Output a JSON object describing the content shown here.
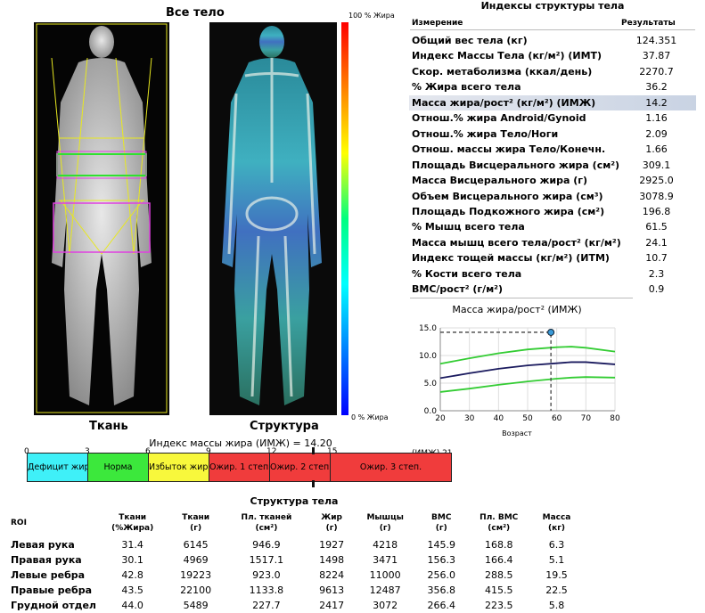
{
  "images": {
    "title": "Все тело",
    "left_label": "Ткань",
    "right_label": "Структура",
    "scale_top": "100 % Жира",
    "scale_bottom": "0 % Жира"
  },
  "indices": {
    "title": "Индексы структуры тела",
    "col_measure": "Измерение",
    "col_result": "Результаты",
    "rows": [
      {
        "label": "Общий вес тела (кг)",
        "value": "124.351"
      },
      {
        "label": "Индекс Массы Тела (кг/м²) (ИМТ)",
        "value": "37.87"
      },
      {
        "label": "Скор. метаболизма (ккал/день)",
        "value": "2270.7"
      },
      {
        "label": "% Жира всего тела",
        "value": "36.2"
      },
      {
        "label": "Масса жира/рост² (кг/м²) (ИМЖ)",
        "value": "14.2"
      },
      {
        "label": "Отнош.% жира Android/Gynoid",
        "value": "1.16"
      },
      {
        "label": "Отнош.% жира Тело/Ноги",
        "value": "2.09"
      },
      {
        "label": "Отнош. массы жира Тело/Конечн.",
        "value": "1.66"
      },
      {
        "label": "Площадь Висцерального жира (см²)",
        "value": "309.1"
      },
      {
        "label": "Масса Висцерального жира (г)",
        "value": "2925.0"
      },
      {
        "label": "Объем Висцерального жира (см³)",
        "value": "3078.9"
      },
      {
        "label": "Площадь Подкожного жира (см²)",
        "value": "196.8"
      },
      {
        "label": "% Мышц всего тела",
        "value": "61.5"
      },
      {
        "label": "Масса мышц всего тела/рост² (кг/м²)",
        "value": "24.1"
      },
      {
        "label": "Индекс тощей массы (кг/м²) (ИТМ)",
        "value": "10.7"
      },
      {
        "label": "% Кости всего тела",
        "value": "2.3"
      },
      {
        "label": "BMC/рост² (г/м²)",
        "value": "0.9"
      }
    ]
  },
  "chart_data": {
    "type": "line",
    "title": "Масса жира/рост² (ИМЖ)",
    "xlabel": "Возраст",
    "ylabel": "",
    "xlim": [
      20,
      80
    ],
    "ylim": [
      0,
      15
    ],
    "xticks": [
      "20",
      "30",
      "40",
      "50",
      "60",
      "70",
      "80"
    ],
    "yticks": [
      "0.0",
      "5.0",
      "10.0",
      "15.0"
    ],
    "x": [
      20,
      30,
      40,
      50,
      60,
      65,
      70,
      80
    ],
    "series": [
      {
        "name": "upper",
        "color": "#33cc33",
        "values": [
          8.5,
          9.5,
          10.4,
          11.1,
          11.5,
          11.6,
          11.4,
          10.7
        ]
      },
      {
        "name": "median",
        "color": "#1a1a5e",
        "values": [
          5.9,
          6.8,
          7.6,
          8.2,
          8.6,
          8.8,
          8.8,
          8.4
        ]
      },
      {
        "name": "lower",
        "color": "#33cc33",
        "values": [
          3.4,
          4.0,
          4.7,
          5.3,
          5.8,
          6.0,
          6.1,
          6.0
        ]
      }
    ],
    "patient_point": {
      "x": 58,
      "y": 14.2
    },
    "grid": true
  },
  "fmi_bar": {
    "title": "Индекс массы жира (ИМЖ) = 14.20",
    "value": 14.2,
    "max": 21,
    "unit_label": "(ИМЖ) 21",
    "ticks": [
      "0",
      "3",
      "6",
      "9",
      "12",
      "15"
    ],
    "segments": [
      {
        "label": "Дефицит жира",
        "from": 0,
        "to": 3,
        "color": "#3ff0f8"
      },
      {
        "label": "Норма",
        "from": 3,
        "to": 6,
        "color": "#3ce83c"
      },
      {
        "label": "Избыток жира",
        "from": 6,
        "to": 9,
        "color": "#f8f83c"
      },
      {
        "label": "Ожир. 1 степ.",
        "from": 9,
        "to": 12,
        "color": "#f03c3c"
      },
      {
        "label": "Ожир. 2 степ.",
        "from": 12,
        "to": 15,
        "color": "#f03c3c"
      },
      {
        "label": "Ожир. 3 степ.",
        "from": 15,
        "to": 21,
        "color": "#f03c3c"
      }
    ]
  },
  "composition": {
    "title": "Структура тела",
    "headers": [
      [
        "ROI",
        ""
      ],
      [
        "Ткани",
        "(%Жира)"
      ],
      [
        "Ткани",
        "(г)"
      ],
      [
        "Пл. тканей",
        "(см²)"
      ],
      [
        "Жир",
        "(г)"
      ],
      [
        "Мышцы",
        "(г)"
      ],
      [
        "BMC",
        "(г)"
      ],
      [
        "Пл. BMC",
        "(см²)"
      ],
      [
        "Масса",
        "(кг)"
      ]
    ],
    "rows": [
      [
        "Левая рука",
        "31.4",
        "6145",
        "946.9",
        "1927",
        "4218",
        "145.9",
        "168.8",
        "6.3"
      ],
      [
        "Правая рука",
        "30.1",
        "4969",
        "1517.1",
        "1498",
        "3471",
        "156.3",
        "166.4",
        "5.1"
      ],
      [
        "Левые ребра",
        "42.8",
        "19223",
        "923.0",
        "8224",
        "11000",
        "256.0",
        "288.5",
        "19.5"
      ],
      [
        "Правые ребра",
        "43.5",
        "22100",
        "1133.8",
        "9613",
        "12487",
        "356.8",
        "415.5",
        "22.5"
      ],
      [
        "Грудной отдел",
        "44.0",
        "5489",
        "227.7",
        "2417",
        "3072",
        "266.4",
        "223.5",
        "5.8"
      ]
    ]
  }
}
